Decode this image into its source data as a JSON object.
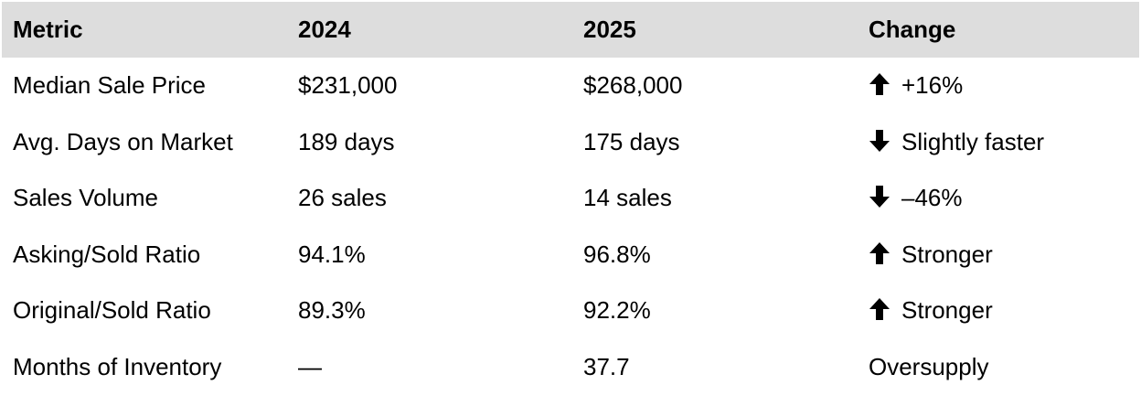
{
  "table": {
    "headers": [
      "Metric",
      "2024",
      "2025",
      "Change"
    ],
    "rows": [
      {
        "metric": "Median Sale Price",
        "y2024": "$231,000",
        "y2025": "$268,000",
        "change_icon": "arrow-up-icon",
        "change": "+16%"
      },
      {
        "metric": "Avg. Days on Market",
        "y2024": "189 days",
        "y2025": "175 days",
        "change_icon": "arrow-down-icon",
        "change": "Slightly faster"
      },
      {
        "metric": "Sales Volume",
        "y2024": "26 sales",
        "y2025": "14 sales",
        "change_icon": "arrow-down-icon",
        "change": "–46%"
      },
      {
        "metric": "Asking/Sold Ratio",
        "y2024": "94.1%",
        "y2025": "96.8%",
        "change_icon": "arrow-up-icon",
        "change": "Stronger"
      },
      {
        "metric": "Original/Sold Ratio",
        "y2024": "89.3%",
        "y2025": "92.2%",
        "change_icon": "arrow-up-icon",
        "change": "Stronger"
      },
      {
        "metric": "Months of Inventory",
        "y2024": "—",
        "y2025": "37.7",
        "change_icon": "",
        "change": "Oversupply"
      }
    ]
  },
  "colors": {
    "header_bg": "#dddddd",
    "text": "#000000",
    "background": "#ffffff"
  }
}
